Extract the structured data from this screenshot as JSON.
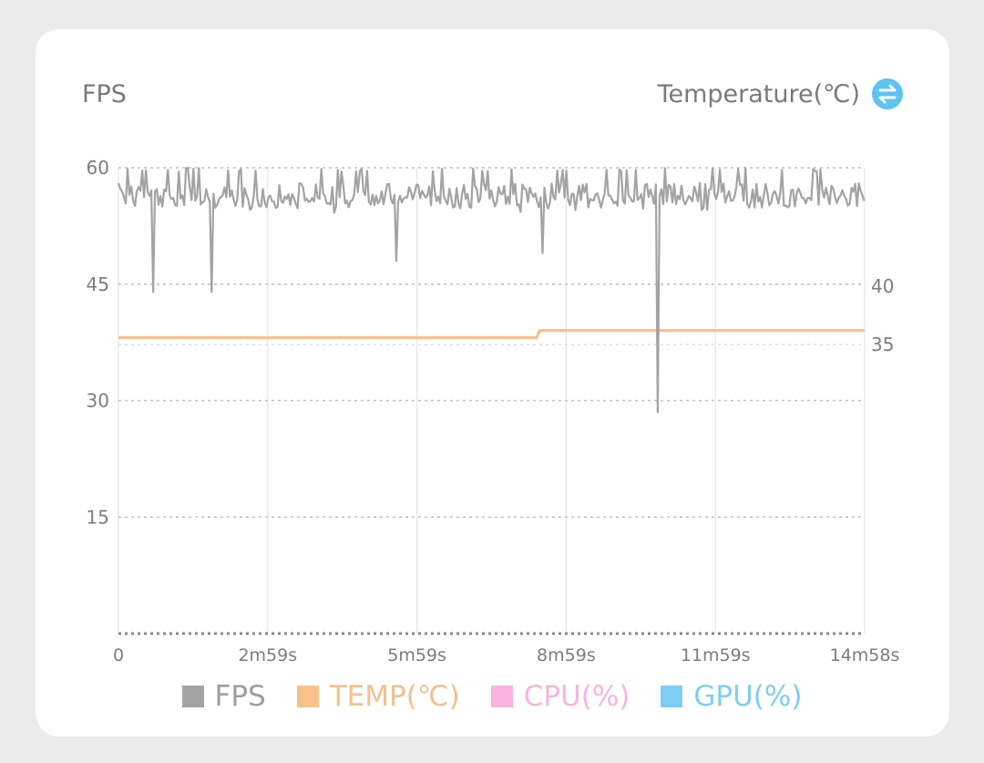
{
  "header": {
    "left_title": "FPS",
    "right_title": "Temperature(℃)",
    "swap_icon": "swap-arrows-icon",
    "swap_color": "#5cc3f2"
  },
  "legend": [
    {
      "label": "FPS",
      "color": "#a3a3a3",
      "text_color": "#9e9e9e"
    },
    {
      "label": "TEMP(℃)",
      "color": "#f8c189",
      "text_color": "#f5c08c"
    },
    {
      "label": "CPU(%)",
      "color": "#f9b4e0",
      "text_color": "#f5b6de"
    },
    {
      "label": "GPU(%)",
      "color": "#7fcdf5",
      "text_color": "#80cdf3"
    }
  ],
  "chart_data": {
    "type": "line",
    "x_axis": {
      "ticks": [
        "0",
        "2m59s",
        "5m59s",
        "8m59s",
        "11m59s",
        "14m58s"
      ],
      "range_seconds": [
        0,
        898
      ]
    },
    "y_left": {
      "label": "FPS",
      "ticks": [
        15,
        30,
        45,
        60
      ],
      "range": [
        0,
        60
      ]
    },
    "y_right": {
      "label": "Temperature(℃)",
      "ticks": [
        35,
        40
      ]
    },
    "grid": true,
    "series": [
      {
        "name": "FPS",
        "color": "#a3a3a3",
        "typical_range": [
          54,
          60
        ],
        "x_seconds": [
          0,
          20,
          37,
          41,
          52,
          61,
          97,
          112,
          181,
          221,
          269,
          314,
          335,
          352,
          371,
          410,
          456,
          502,
          510,
          524,
          558,
          575,
          604,
          629,
          637,
          650,
          680,
          705,
          740,
          780,
          810,
          840,
          870,
          898
        ],
        "values": [
          57,
          59,
          56,
          44,
          58,
          57,
          56,
          44,
          57,
          58,
          56,
          57,
          48,
          58,
          57,
          58,
          57,
          57,
          49,
          56,
          57,
          58,
          55,
          58,
          56,
          28.5,
          58,
          56,
          57,
          57,
          56,
          58,
          57,
          57
        ]
      },
      {
        "name": "TEMP(℃)",
        "color": "#f8c189",
        "x_seconds": [
          0,
          503,
          507,
          898
        ],
        "values": [
          35.6,
          35.6,
          36.2,
          36.2
        ]
      }
    ]
  }
}
